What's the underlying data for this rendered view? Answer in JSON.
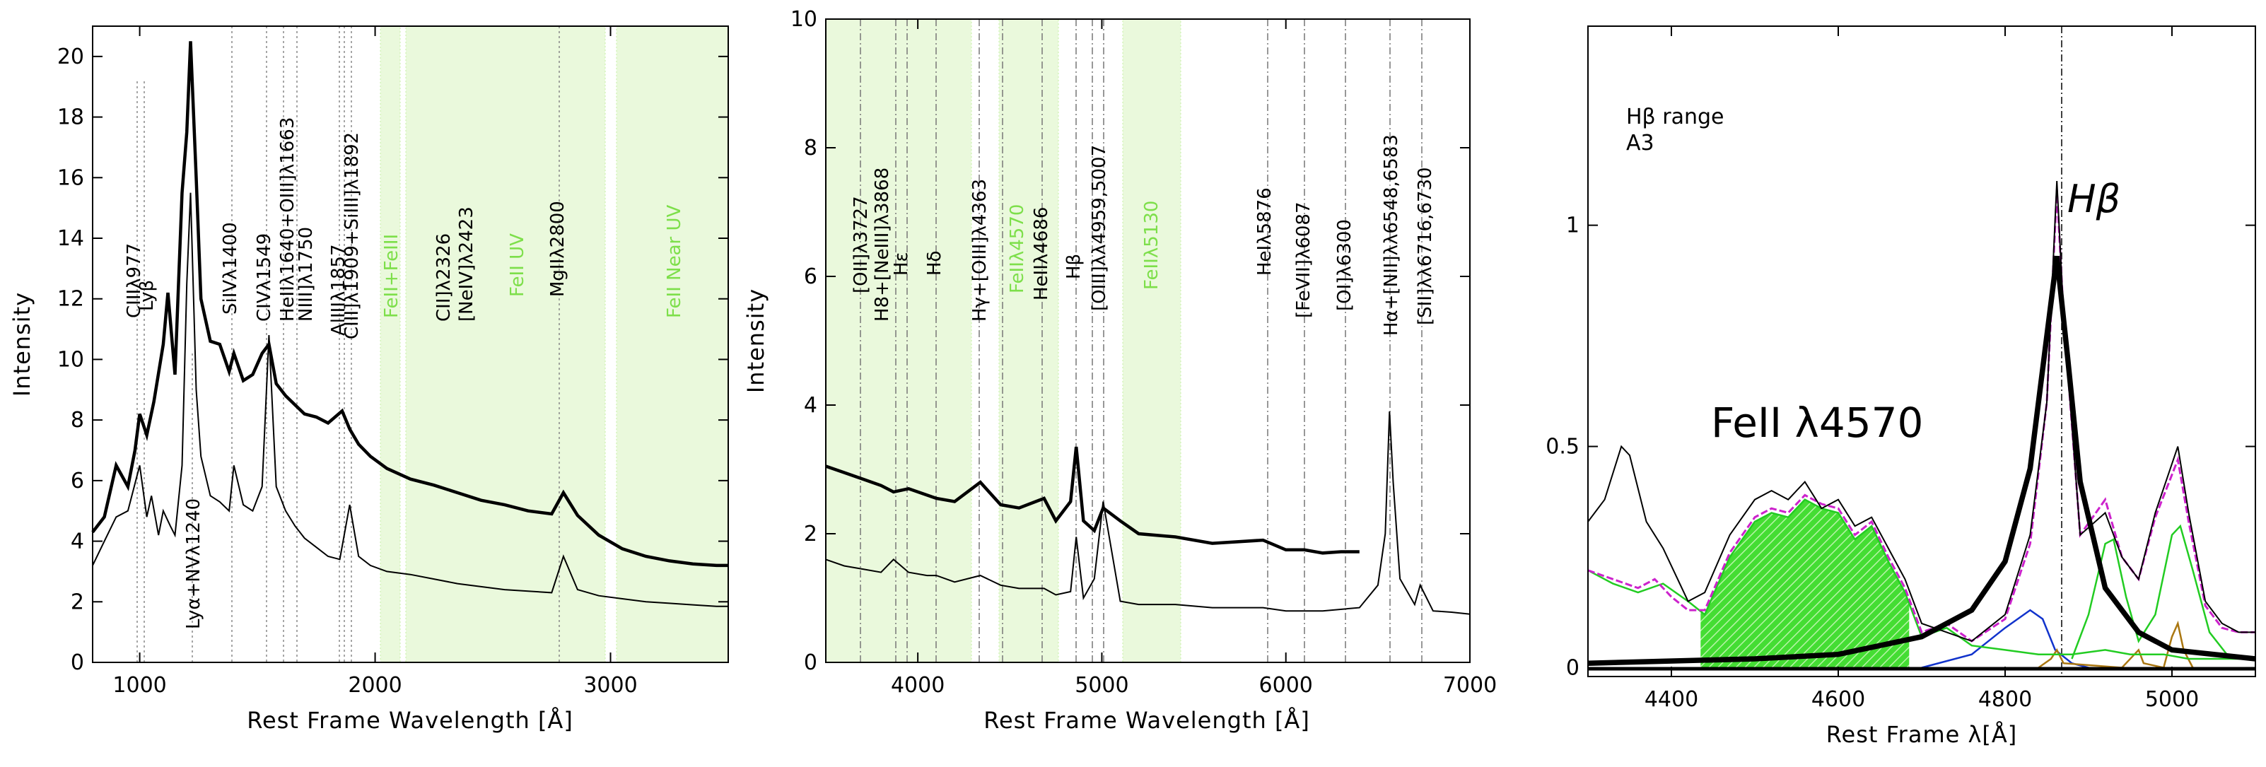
{
  "chart_data": [
    {
      "type": "line",
      "title": "",
      "xlabel": "Rest Frame Wavelength [Å]",
      "ylabel": "Intensity",
      "xlim": [
        800,
        3500
      ],
      "ylim": [
        0,
        21
      ],
      "xticks": [
        1000,
        2000,
        3000
      ],
      "yticks": [
        0,
        2,
        4,
        6,
        8,
        10,
        12,
        14,
        16,
        18,
        20
      ],
      "series": [
        {
          "name": "upper spectrum (thick)",
          "x": [
            800,
            850,
            900,
            950,
            980,
            1000,
            1030,
            1060,
            1100,
            1120,
            1150,
            1180,
            1200,
            1216,
            1240,
            1260,
            1300,
            1340,
            1380,
            1400,
            1440,
            1480,
            1520,
            1549,
            1580,
            1620,
            1660,
            1700,
            1750,
            1800,
            1860,
            1892,
            1930,
            1980,
            2050,
            2150,
            2250,
            2350,
            2450,
            2550,
            2650,
            2750,
            2800,
            2860,
            2950,
            3050,
            3150,
            3250,
            3350,
            3450,
            3500
          ],
          "y": [
            4.3,
            4.8,
            6.5,
            5.8,
            7,
            8.2,
            7.5,
            8.6,
            10.5,
            12.2,
            9.5,
            15.5,
            17.5,
            20.5,
            16,
            12,
            10.6,
            10.5,
            9.6,
            10.2,
            9.3,
            9.5,
            10.2,
            10.5,
            9.2,
            8.8,
            8.5,
            8.2,
            8.1,
            7.9,
            8.3,
            7.7,
            7.2,
            6.8,
            6.4,
            6.05,
            5.85,
            5.6,
            5.35,
            5.2,
            5.0,
            4.9,
            5.6,
            4.85,
            4.2,
            3.75,
            3.5,
            3.35,
            3.25,
            3.2,
            3.2
          ]
        },
        {
          "name": "lower spectrum (thin)",
          "x": [
            800,
            850,
            900,
            950,
            1000,
            1030,
            1050,
            1080,
            1100,
            1130,
            1150,
            1180,
            1200,
            1216,
            1240,
            1260,
            1300,
            1340,
            1380,
            1400,
            1440,
            1480,
            1520,
            1549,
            1580,
            1620,
            1660,
            1700,
            1750,
            1800,
            1850,
            1892,
            1930,
            1980,
            2050,
            2150,
            2250,
            2350,
            2450,
            2550,
            2650,
            2750,
            2800,
            2860,
            2950,
            3050,
            3150,
            3250,
            3350,
            3450,
            3500
          ],
          "y": [
            3.2,
            4.0,
            4.8,
            5.0,
            6.5,
            4.8,
            5.5,
            4.2,
            5.0,
            4.5,
            4.2,
            6.5,
            12.5,
            15.5,
            9.0,
            6.8,
            5.5,
            5.3,
            5.0,
            6.5,
            5.2,
            5.0,
            5.8,
            10.8,
            5.8,
            5.0,
            4.5,
            4.1,
            3.8,
            3.5,
            3.4,
            5.2,
            3.5,
            3.2,
            3.0,
            2.9,
            2.75,
            2.6,
            2.5,
            2.4,
            2.35,
            2.3,
            3.5,
            2.4,
            2.2,
            2.1,
            2.0,
            1.95,
            1.9,
            1.85,
            1.85
          ]
        }
      ],
      "annotations": [
        "CIIIλ977",
        "Lyβ",
        "SiIVλ1400",
        "CIVλ1549",
        "HeIIλ1640+OIII]λ1663",
        "NIII]λ1750",
        "AlIIIλ1857",
        "CIII]λ1909+SiIII]λ1892",
        "Lyα+NVλ1240",
        "MgIIλ2800"
      ],
      "shaded_labels": [
        "FeII+FeIII",
        "CII]λ2326",
        "[NeIV]λ2423",
        "FeII UV",
        "FeII Near UV"
      ]
    },
    {
      "type": "line",
      "title": "",
      "xlabel": "Rest Frame Wavelength [Å]",
      "ylabel": "Intensity",
      "xlim": [
        3500,
        7000
      ],
      "ylim": [
        0,
        10
      ],
      "xticks": [
        4000,
        5000,
        6000,
        7000
      ],
      "yticks": [
        0,
        2,
        4,
        6,
        8,
        10
      ],
      "series": [
        {
          "name": "upper spectrum (thick)",
          "x": [
            3500,
            3600,
            3700,
            3800,
            3868,
            3950,
            4050,
            4101,
            4200,
            4340,
            4450,
            4550,
            4686,
            4750,
            4830,
            4861,
            4900,
            4959,
            5007,
            5100,
            5200,
            5400,
            5600,
            5876,
            6000,
            6100,
            6200,
            6300,
            6400
          ],
          "y": [
            3.05,
            2.95,
            2.85,
            2.75,
            2.65,
            2.7,
            2.6,
            2.55,
            2.5,
            2.8,
            2.45,
            2.4,
            2.55,
            2.2,
            2.5,
            3.35,
            2.2,
            2.05,
            2.4,
            2.2,
            2.0,
            1.95,
            1.85,
            1.9,
            1.75,
            1.75,
            1.7,
            1.72,
            1.72
          ]
        },
        {
          "name": "lower spectrum (thin)",
          "x": [
            3500,
            3600,
            3700,
            3800,
            3868,
            3950,
            4050,
            4101,
            4200,
            4340,
            4450,
            4550,
            4686,
            4750,
            4830,
            4861,
            4900,
            4959,
            5007,
            5100,
            5200,
            5400,
            5600,
            5876,
            6000,
            6200,
            6400,
            6500,
            6540,
            6563,
            6583,
            6620,
            6700,
            6730,
            6800,
            6900,
            7000
          ],
          "y": [
            1.6,
            1.5,
            1.45,
            1.4,
            1.6,
            1.4,
            1.35,
            1.35,
            1.25,
            1.35,
            1.2,
            1.15,
            1.15,
            1.05,
            1.1,
            1.95,
            1.0,
            1.3,
            2.5,
            0.95,
            0.9,
            0.9,
            0.85,
            0.85,
            0.8,
            0.8,
            0.85,
            1.2,
            2.0,
            3.9,
            2.8,
            1.3,
            0.9,
            1.2,
            0.8,
            0.78,
            0.75
          ]
        }
      ],
      "annotations": [
        "[OII]λ3727",
        "H8+[NeIII]λ3868",
        "Hε",
        "Hδ",
        "Hγ+[OIII]λ4363",
        "HeIIλ4686",
        "Hβ",
        "[OIII]λλ4959,5007",
        "HeIλ5876",
        "[FeVII]λ6087",
        "[OI]λ6300",
        "Hα+[NII]λλ6548,6583",
        "[SII]λλ6716,6730"
      ],
      "shaded_labels": [
        "FeIIλ4570",
        "FeIIλ5130"
      ]
    },
    {
      "type": "line",
      "title": "",
      "xlabel": "Rest Frame λ[Å]",
      "ylabel": "",
      "xlim": [
        4300,
        5100
      ],
      "ylim": [
        -0.02,
        1.45
      ],
      "xticks": [
        4400,
        4600,
        4800,
        5000
      ],
      "yticks": [
        0,
        0.5,
        1
      ],
      "legend_text": [
        "Hβ range",
        "A3"
      ],
      "annotations": [
        "FeII λ4570",
        "Hβ"
      ],
      "series": [
        {
          "name": "observed spectrum",
          "x": [
            4300,
            4320,
            4340,
            4350,
            4370,
            4390,
            4420,
            4440,
            4470,
            4500,
            4520,
            4540,
            4560,
            4580,
            4600,
            4620,
            4640,
            4660,
            4680,
            4700,
            4730,
            4760,
            4800,
            4830,
            4850,
            4862,
            4870,
            4890,
            4920,
            4940,
            4960,
            4980,
            5007,
            5020,
            5040,
            5060,
            5080,
            5100
          ],
          "y": [
            0.33,
            0.38,
            0.5,
            0.48,
            0.33,
            0.27,
            0.15,
            0.17,
            0.3,
            0.38,
            0.4,
            0.38,
            0.42,
            0.36,
            0.38,
            0.32,
            0.34,
            0.27,
            0.2,
            0.1,
            0.08,
            0.06,
            0.12,
            0.3,
            0.6,
            1.1,
            0.8,
            0.3,
            0.35,
            0.25,
            0.2,
            0.35,
            0.5,
            0.35,
            0.15,
            0.1,
            0.08,
            0.08
          ]
        },
        {
          "name": "total fit",
          "x": [
            4300,
            4330,
            4360,
            4380,
            4400,
            4420,
            4440,
            4470,
            4500,
            4520,
            4540,
            4560,
            4580,
            4600,
            4620,
            4640,
            4660,
            4680,
            4700,
            4730,
            4760,
            4800,
            4830,
            4850,
            4862,
            4870,
            4890,
            4920,
            4940,
            4960,
            4980,
            5007,
            5020,
            5040,
            5060,
            5080,
            5100
          ],
          "y": [
            0.22,
            0.2,
            0.18,
            0.2,
            0.16,
            0.13,
            0.13,
            0.26,
            0.34,
            0.36,
            0.35,
            0.39,
            0.37,
            0.36,
            0.3,
            0.33,
            0.25,
            0.18,
            0.08,
            0.1,
            0.06,
            0.11,
            0.28,
            0.6,
            1.08,
            0.8,
            0.3,
            0.38,
            0.25,
            0.2,
            0.34,
            0.47,
            0.33,
            0.14,
            0.09,
            0.08,
            0.08
          ]
        },
        {
          "name": "FeII template",
          "x": [
            4300,
            4330,
            4360,
            4390,
            4420,
            4440,
            4470,
            4500,
            4520,
            4540,
            4560,
            4580,
            4600,
            4620,
            4640,
            4660,
            4680,
            4700,
            4730,
            4760,
            4800,
            4840,
            4880,
            4920,
            4950,
            4990,
            5020,
            5060,
            5100
          ],
          "y": [
            0.22,
            0.19,
            0.17,
            0.19,
            0.15,
            0.12,
            0.25,
            0.33,
            0.35,
            0.34,
            0.38,
            0.36,
            0.35,
            0.29,
            0.32,
            0.24,
            0.17,
            0.07,
            0.09,
            0.05,
            0.04,
            0.03,
            0.03,
            0.04,
            0.03,
            0.03,
            0.02,
            0.02,
            0.02
          ]
        },
        {
          "name": "Hβ broad component",
          "x": [
            4300,
            4500,
            4600,
            4700,
            4760,
            4800,
            4830,
            4850,
            4862,
            4875,
            4890,
            4920,
            4960,
            5000,
            5100
          ],
          "y": [
            0.01,
            0.02,
            0.03,
            0.07,
            0.13,
            0.24,
            0.45,
            0.75,
            0.93,
            0.7,
            0.42,
            0.18,
            0.08,
            0.04,
            0.02
          ]
        },
        {
          "name": "blue shifted component",
          "x": [
            4700,
            4760,
            4800,
            4830,
            4845,
            4860,
            4880,
            4900
          ],
          "y": [
            0.0,
            0.03,
            0.09,
            0.13,
            0.11,
            0.04,
            0.01,
            0.0
          ]
        },
        {
          "name": "[OIII] components",
          "x": [
            4880,
            4900,
            4920,
            4930,
            4945,
            4960,
            4980,
            5000,
            5010,
            5025,
            5045,
            5070
          ],
          "y": [
            0.02,
            0.12,
            0.28,
            0.29,
            0.16,
            0.06,
            0.12,
            0.3,
            0.32,
            0.22,
            0.08,
            0.02
          ]
        },
        {
          "name": "narrow components",
          "x": [
            4840,
            4855,
            4862,
            4870,
            4940,
            4955,
            4960,
            4966,
            4990,
            5000,
            5007,
            5014,
            5025
          ],
          "y": [
            0,
            0.02,
            0.04,
            0.01,
            0,
            0.03,
            0.04,
            0.01,
            0,
            0.07,
            0.1,
            0.04,
            0
          ]
        }
      ]
    }
  ]
}
